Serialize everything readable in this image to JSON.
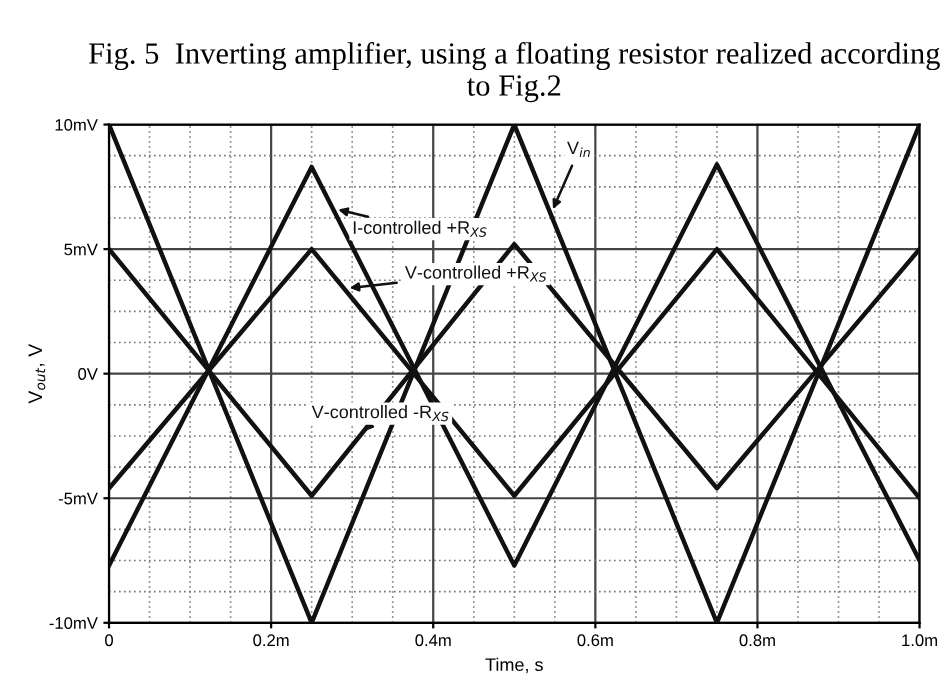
{
  "chart_data": {
    "type": "line",
    "title": "Fig. 5  Inverting amplifier, using a floating resistor realized according to Fig.2",
    "xlabel": "Time, s",
    "ylabel": "V$_{out}$, V",
    "xlim": [
      0,
      1.0
    ],
    "ylim": [
      -10,
      10
    ],
    "xticks": [
      {
        "value": 0,
        "label": "0"
      },
      {
        "value": 0.2,
        "label": "0.2m"
      },
      {
        "value": 0.4,
        "label": "0.4m"
      },
      {
        "value": 0.6,
        "label": "0.6m"
      },
      {
        "value": 0.8,
        "label": "0.8m"
      },
      {
        "value": 1.0,
        "label": "1.0m"
      }
    ],
    "yticks": [
      {
        "value": -10,
        "label": "-10mV"
      },
      {
        "value": -5,
        "label": "-5mV"
      },
      {
        "value": 0,
        "label": "0V"
      },
      {
        "value": 5,
        "label": "5mV"
      },
      {
        "value": 10,
        "label": "10mV"
      }
    ],
    "grid": true,
    "line_style": "solid",
    "x": [
      0,
      0.25,
      0.5,
      0.75,
      1.0
    ],
    "series": [
      {
        "name": "V$_{in}$",
        "color": "#111111",
        "values": [
          10,
          -10,
          10,
          -10,
          10
        ]
      },
      {
        "name": "I-controlled +R$_{XS}$",
        "color": "#111111",
        "values": [
          -7.7,
          8.3,
          -7.7,
          8.4,
          -7.5
        ]
      },
      {
        "name": "V-controlled +R$_{XS}$",
        "color": "#111111",
        "values": [
          -4.6,
          5.0,
          -4.9,
          5.0,
          -5.0
        ]
      },
      {
        "name": "V-controlled -R$_{XS}$",
        "color": "#111111",
        "values": [
          5.0,
          -4.9,
          5.2,
          -4.6,
          5.0
        ]
      }
    ]
  }
}
